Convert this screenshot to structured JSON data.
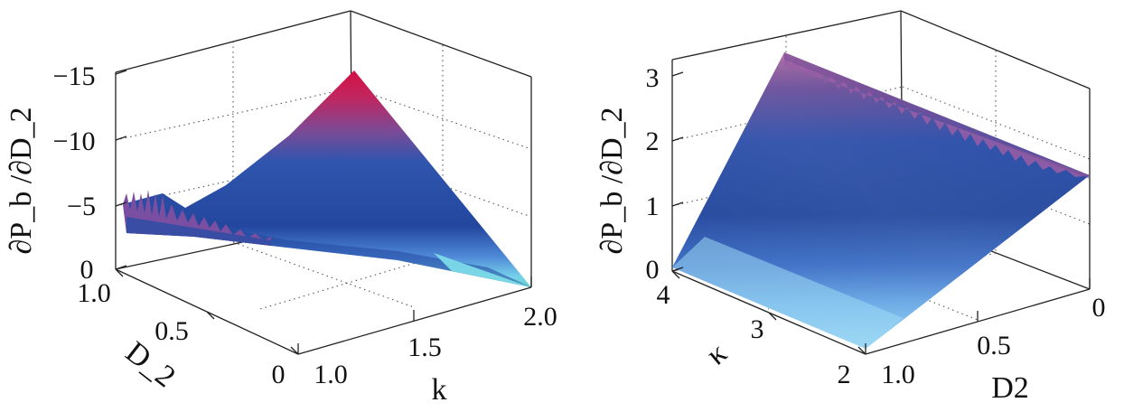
{
  "chart_data": [
    {
      "type": "surface",
      "zlabel": "∂P_b /∂D_2",
      "xlabel": "k",
      "ylabel": "D_2",
      "x_ticks": [
        "1.0",
        "1.5",
        "2.0"
      ],
      "y_ticks": [
        "0",
        "0.5",
        "1.0"
      ],
      "z_ticks": [
        "0",
        "−5",
        "−10",
        "−15"
      ],
      "xlim": [
        1.0,
        2.0
      ],
      "ylim": [
        0,
        1.0
      ],
      "zlim": [
        0,
        -15
      ],
      "surface": {
        "peak": {
          "k": 2.0,
          "D2": 1.0,
          "value": -15
        },
        "low_corner": {
          "k": 2.0,
          "D2": 0,
          "value": 0
        },
        "ridge_edge": {
          "k": 1.0,
          "D2": 1.0,
          "value": -3.5
        }
      },
      "colormap": [
        "#7ee0e8",
        "#6aa8e0",
        "#2f56b0",
        "#24489e",
        "#8a4e98",
        "#d0154a"
      ]
    },
    {
      "type": "surface",
      "zlabel": "∂P_b /∂D_2",
      "xlabel": "κ",
      "ylabel": "D2",
      "x_ticks": [
        "2",
        "3",
        "4"
      ],
      "y_ticks": [
        "1.0",
        "0.5",
        "0"
      ],
      "z_ticks": [
        "0",
        "1",
        "2",
        "3"
      ],
      "xlim": [
        2,
        4
      ],
      "ylim": [
        0,
        1.0
      ],
      "zlim": [
        0,
        3
      ],
      "surface": {
        "peak": {
          "k": 4,
          "D2": 0,
          "value": 3.3
        },
        "far_corner": {
          "k": 2,
          "D2": 0,
          "value": 1.5
        }
      },
      "colormap": [
        "#8ad2f2",
        "#5c9ae0",
        "#2f58b2",
        "#24489e",
        "#7a4e98",
        "#a86aa8"
      ]
    }
  ]
}
